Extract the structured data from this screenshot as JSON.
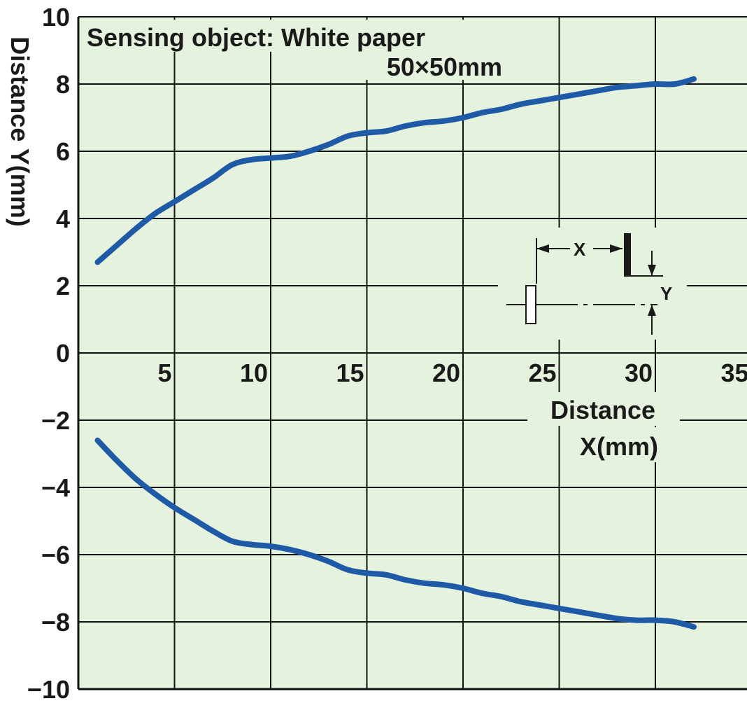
{
  "chart_data": {
    "type": "line",
    "title": "",
    "annotation": {
      "line1": "Sensing object: White paper",
      "line2": "50×50mm"
    },
    "xlabel_line1": "Distance",
    "xlabel_line2": "X(mm)",
    "ylabel": "Distance Y(mm)",
    "xlim": [
      0,
      35
    ],
    "ylim": [
      -10,
      10
    ],
    "x_ticks": [
      5,
      10,
      15,
      20,
      25,
      30,
      35
    ],
    "x_tick_labels": [
      "5",
      "10",
      "15",
      "20",
      "25",
      "30",
      "35"
    ],
    "y_ticks": [
      10,
      8,
      6,
      4,
      2,
      0,
      -2,
      -4,
      -6,
      -8,
      -10
    ],
    "y_tick_labels": [
      "10",
      "8",
      "6",
      "4",
      "2",
      "0",
      "−2",
      "−4",
      "−6",
      "−8",
      "−10"
    ],
    "grid": true,
    "legend": "none",
    "colors": {
      "plot_bg": "#e5f2dd",
      "line": "#1f5aa6",
      "grid": "#111111"
    },
    "series": [
      {
        "x": [
          1,
          2,
          3,
          4,
          5,
          6,
          7,
          8,
          9,
          10,
          11,
          12,
          13,
          14,
          15,
          16,
          17,
          18,
          19,
          20,
          21,
          22,
          23,
          24,
          25,
          26,
          27,
          28,
          29,
          30,
          31,
          32
        ],
        "values": [
          2.7,
          3.2,
          3.7,
          4.15,
          4.5,
          4.85,
          5.2,
          5.6,
          5.75,
          5.8,
          5.85,
          6.0,
          6.2,
          6.45,
          6.55,
          6.6,
          6.75,
          6.85,
          6.9,
          7.0,
          7.15,
          7.25,
          7.4,
          7.5,
          7.6,
          7.7,
          7.8,
          7.9,
          7.95,
          8.0,
          8.0,
          8.15
        ]
      },
      {
        "x": [
          1,
          2,
          3,
          4,
          5,
          6,
          7,
          8,
          9,
          10,
          11,
          12,
          13,
          14,
          15,
          16,
          17,
          18,
          19,
          20,
          21,
          22,
          23,
          24,
          25,
          26,
          27,
          28,
          29,
          30,
          31,
          32
        ],
        "values": [
          -2.6,
          -3.2,
          -3.75,
          -4.2,
          -4.6,
          -4.95,
          -5.3,
          -5.6,
          -5.7,
          -5.75,
          -5.85,
          -6.0,
          -6.2,
          -6.45,
          -6.55,
          -6.6,
          -6.75,
          -6.85,
          -6.9,
          -7.0,
          -7.15,
          -7.25,
          -7.4,
          -7.5,
          -7.6,
          -7.7,
          -7.8,
          -7.9,
          -7.95,
          -7.95,
          -8.0,
          -8.15
        ]
      }
    ],
    "inset": {
      "x_label": "X",
      "y_label": "Y"
    }
  }
}
